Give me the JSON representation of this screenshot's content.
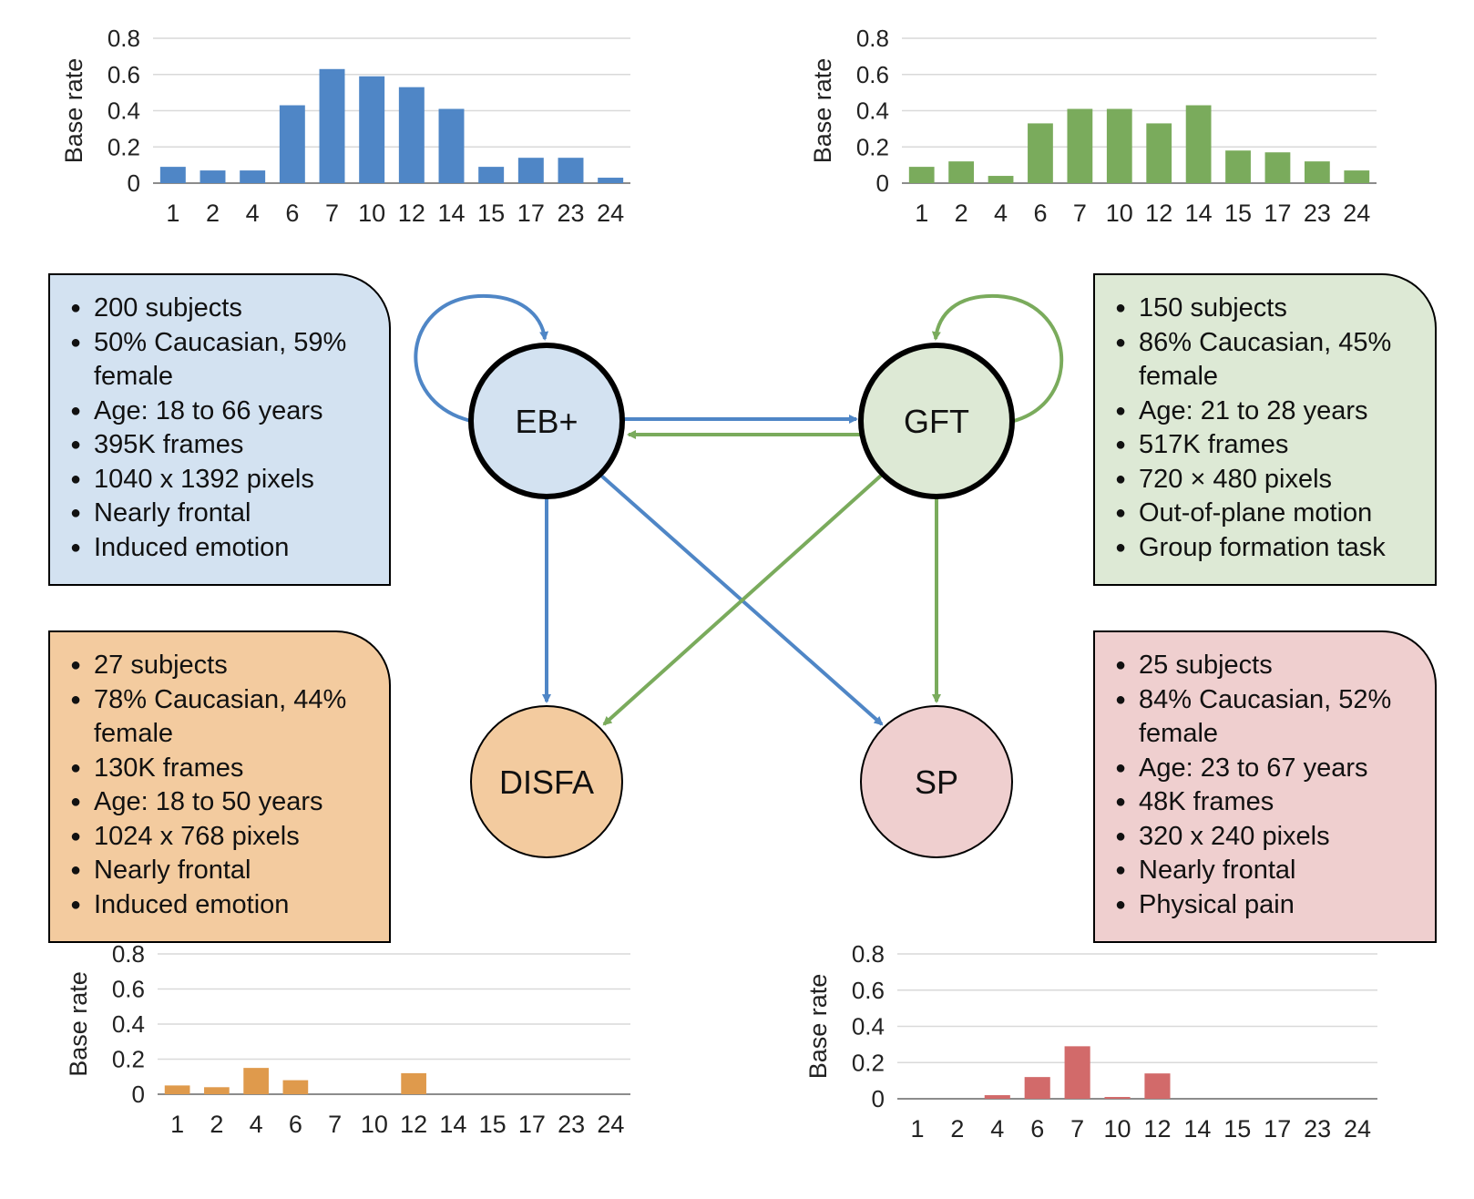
{
  "chart_data": [
    {
      "type": "bar",
      "dataset": "EB+",
      "color": "#4f86c6",
      "categories": [
        "1",
        "2",
        "4",
        "6",
        "7",
        "10",
        "12",
        "14",
        "15",
        "17",
        "23",
        "24"
      ],
      "values": [
        0.09,
        0.07,
        0.07,
        0.43,
        0.63,
        0.59,
        0.53,
        0.41,
        0.09,
        0.14,
        0.14,
        0.03
      ],
      "ylabel": "Base rate",
      "ylim": [
        0,
        0.8
      ],
      "yticks": [
        "0",
        "0.2",
        "0.4",
        "0.6",
        "0.8"
      ],
      "grid": true
    },
    {
      "type": "bar",
      "dataset": "GFT",
      "color": "#7aab5c",
      "categories": [
        "1",
        "2",
        "4",
        "6",
        "7",
        "10",
        "12",
        "14",
        "15",
        "17",
        "23",
        "24"
      ],
      "values": [
        0.09,
        0.12,
        0.04,
        0.33,
        0.41,
        0.41,
        0.33,
        0.43,
        0.18,
        0.17,
        0.12,
        0.07
      ],
      "ylabel": "Base rate",
      "ylim": [
        0,
        0.8
      ],
      "yticks": [
        "0",
        "0.2",
        "0.4",
        "0.6",
        "0.8"
      ],
      "grid": true
    },
    {
      "type": "bar",
      "dataset": "DISFA",
      "color": "#df9a4c",
      "categories": [
        "1",
        "2",
        "4",
        "6",
        "7",
        "10",
        "12",
        "14",
        "15",
        "17",
        "23",
        "24"
      ],
      "values": [
        0.05,
        0.04,
        0.15,
        0.08,
        0,
        0,
        0.12,
        0,
        0,
        0,
        0,
        0
      ],
      "ylabel": "Base rate",
      "ylim": [
        0,
        0.8
      ],
      "yticks": [
        "0",
        "0.2",
        "0.4",
        "0.6",
        "0.8"
      ],
      "grid": true
    },
    {
      "type": "bar",
      "dataset": "SP",
      "color": "#d26a6a",
      "categories": [
        "1",
        "2",
        "4",
        "6",
        "7",
        "10",
        "12",
        "14",
        "15",
        "17",
        "23",
        "24"
      ],
      "values": [
        0,
        0,
        0.02,
        0.12,
        0.29,
        0.01,
        0.14,
        0,
        0,
        0,
        0,
        0
      ],
      "ylabel": "Base rate",
      "ylim": [
        0,
        0.8
      ],
      "yticks": [
        "0",
        "0.2",
        "0.4",
        "0.6",
        "0.8"
      ],
      "grid": true
    }
  ],
  "diagram": {
    "nodes": [
      {
        "id": "eb",
        "label": "EB+",
        "fill": "#d3e2f1"
      },
      {
        "id": "gft",
        "label": "GFT",
        "fill": "#dde9d5"
      },
      {
        "id": "disfa",
        "label": "DISFA",
        "fill": "#f3cb9f"
      },
      {
        "id": "sp",
        "label": "SP",
        "fill": "#efcfcf"
      }
    ],
    "edge_colors": {
      "blue": "#4f86c6",
      "green": "#7aab5c"
    }
  },
  "boxes": {
    "eb": {
      "fill": "#d3e2f1",
      "items": [
        "200 subjects",
        "50% Caucasian, 59% female",
        "Age: 18 to 66 years",
        "395K frames",
        "1040 x 1392 pixels",
        "Nearly frontal",
        "Induced emotion"
      ]
    },
    "gft": {
      "fill": "#dde9d5",
      "items": [
        "150 subjects",
        "86% Caucasian, 45% female",
        "Age: 21 to 28 years",
        "517K frames",
        "720 × 480 pixels",
        "Out-of-plane motion",
        "Group formation task"
      ]
    },
    "disfa": {
      "fill": "#f3cb9f",
      "items": [
        "27 subjects",
        "78% Caucasian, 44% female",
        "130K frames",
        "Age: 18 to 50 years",
        "1024 x 768 pixels",
        "Nearly frontal",
        "Induced emotion"
      ]
    },
    "sp": {
      "fill": "#efcfcf",
      "items": [
        "25 subjects",
        "84% Caucasian, 52% female",
        "Age: 23 to 67 years",
        "48K frames",
        "320 x 240 pixels",
        "Nearly frontal",
        "Physical pain"
      ]
    }
  }
}
